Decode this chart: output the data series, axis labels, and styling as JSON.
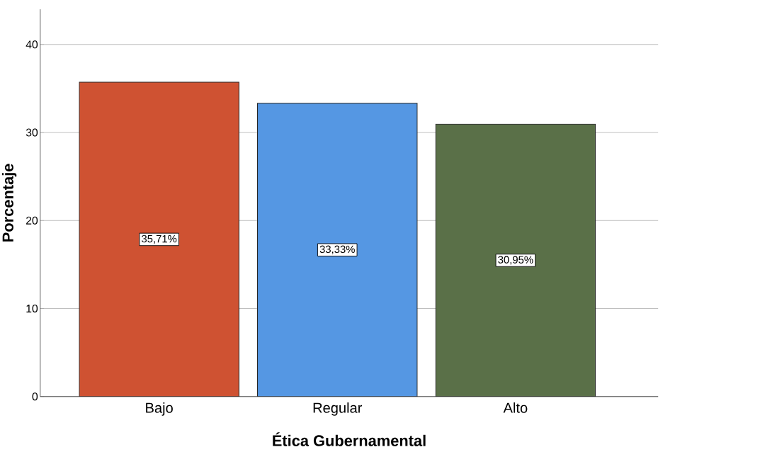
{
  "chart_data": {
    "type": "bar",
    "xlabel": "Ética Gubernamental",
    "ylabel": "Porcentaje",
    "categories": [
      "Bajo",
      "Regular",
      "Alto"
    ],
    "values": [
      35.71,
      33.33,
      30.95
    ],
    "value_labels": [
      "35,71%",
      "33,33%",
      "30,95%"
    ],
    "colors": [
      "#cf5232",
      "#5597e3",
      "#5a7048"
    ],
    "ylim": [
      0,
      44
    ],
    "yticks": [
      0,
      10,
      20,
      30,
      40
    ],
    "grid": "y"
  }
}
